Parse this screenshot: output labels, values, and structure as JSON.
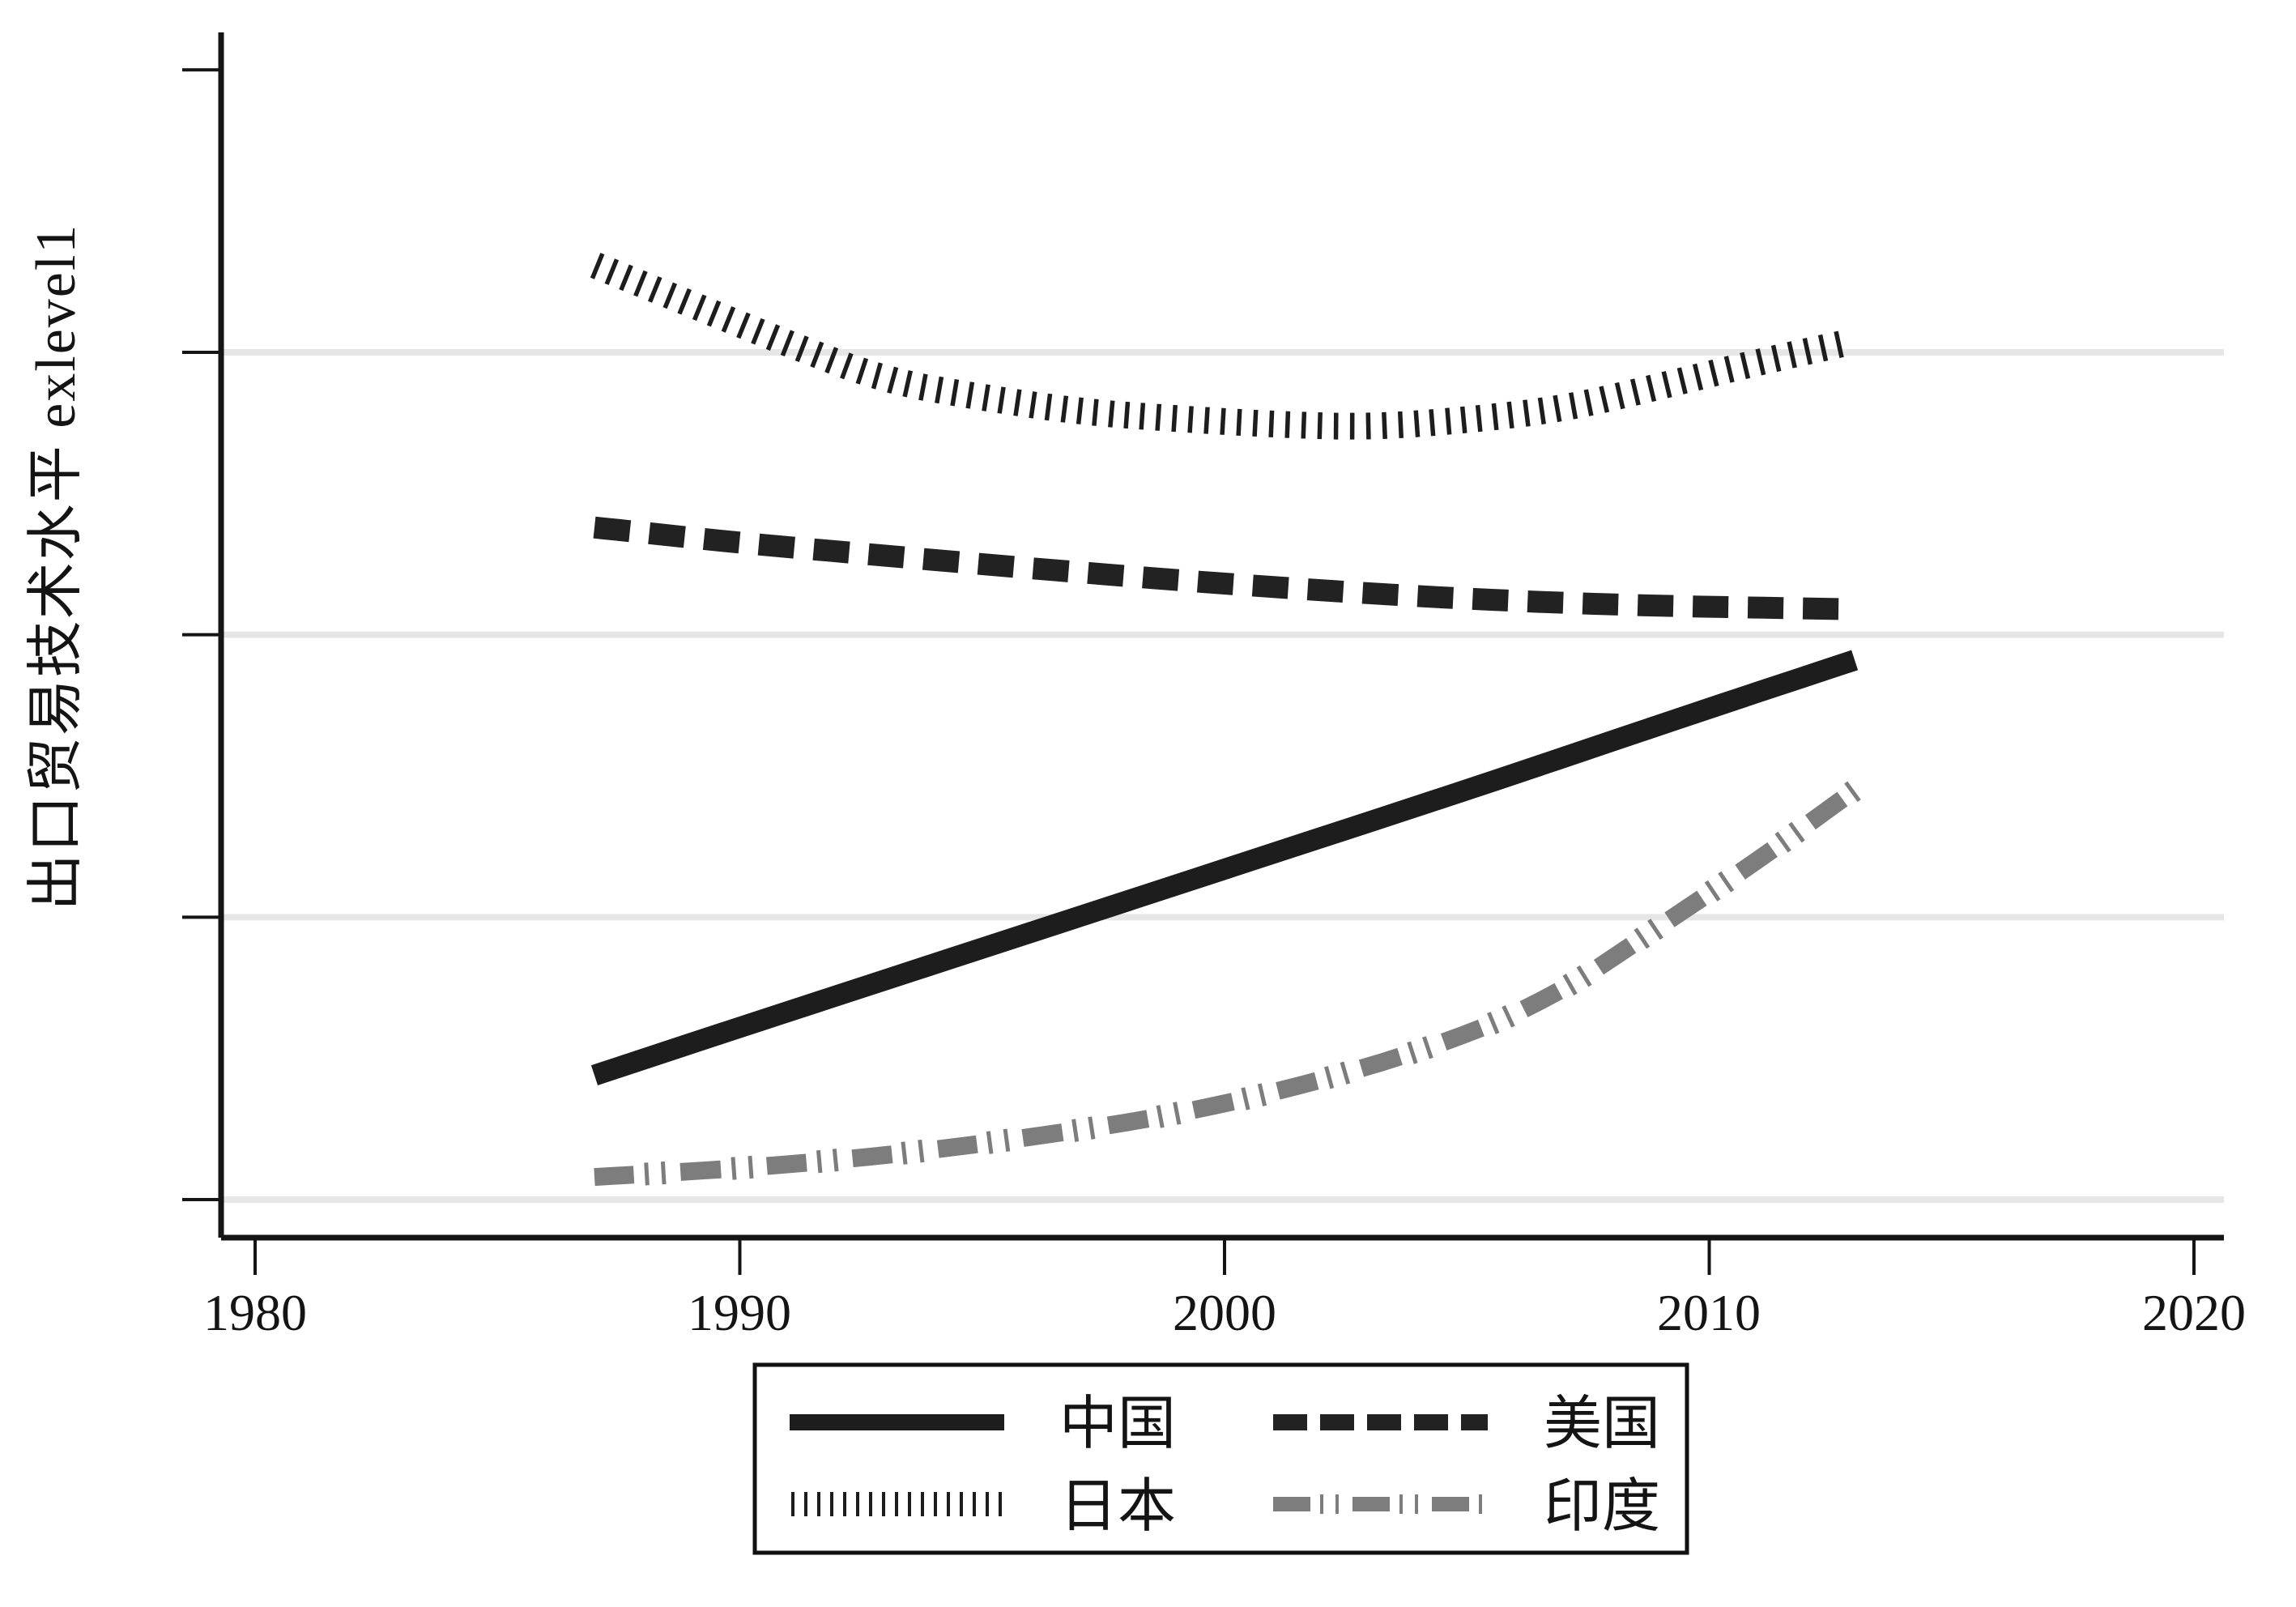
{
  "page": {
    "background": "#ffffff"
  },
  "chart": {
    "y_axis_label": "出口贸易技术水平 exlevel1",
    "x_tick_labels": [
      "1980",
      "1990",
      "2000",
      "2010",
      "2020"
    ],
    "colors": {
      "axis": "#141414",
      "gridline": "#e6e6e6",
      "black_series": "#1d1d1d",
      "gray_series": "#7d7d7d",
      "legend_border": "#111111"
    }
  },
  "legend": {
    "items": [
      {
        "id": "china",
        "label": "中国",
        "style": "solid",
        "color": "#1d1d1d"
      },
      {
        "id": "usa",
        "label": "美国",
        "style": "dashed",
        "color": "#222222"
      },
      {
        "id": "japan",
        "label": "日本",
        "style": "ticks",
        "color": "#1d1d1d"
      },
      {
        "id": "india",
        "label": "印度",
        "style": "dash-dot-dot",
        "color": "#7d7d7d"
      }
    ]
  },
  "chart_data": {
    "type": "line",
    "title": "",
    "xlabel": "",
    "ylabel": "出口贸易技术水平 exlevel1",
    "x_ticks": [
      1980,
      1990,
      2000,
      2010,
      2020
    ],
    "xlim": [
      1979.3,
      2021.3
    ],
    "ylim": [
      0.87,
      5.16
    ],
    "grid": "horizontal",
    "legend_position": "bottom-center-boxed",
    "y_axis_numeric_labels_visible": false,
    "y_unit_note": "y axis has tick marks but no numeric labels; values given in gridline units (bottom gridline = 1, each gridline step = +1, top tick = 5)",
    "y_gridline_values": [
      1,
      2,
      3,
      4
    ],
    "y_tick_values": [
      1,
      2,
      3,
      4,
      5
    ],
    "series": [
      {
        "id": "china",
        "name": "中国",
        "style": "solid",
        "color": "#1d1d1d",
        "points": [
          [
            1987,
            1.44
          ],
          [
            1990,
            1.61
          ],
          [
            1995,
            1.89
          ],
          [
            2000,
            2.17
          ],
          [
            2005,
            2.45
          ],
          [
            2010,
            2.74
          ],
          [
            2013,
            2.91
          ]
        ]
      },
      {
        "id": "usa",
        "name": "美国",
        "style": "dashed",
        "color": "#222222",
        "points": [
          [
            1987,
            3.38
          ],
          [
            1990,
            3.325
          ],
          [
            1993,
            3.28
          ],
          [
            1996,
            3.235
          ],
          [
            2000,
            3.18
          ],
          [
            2004,
            3.135
          ],
          [
            2008,
            3.105
          ],
          [
            2013,
            3.09
          ]
        ]
      },
      {
        "id": "japan",
        "name": "日本",
        "style": "ticks",
        "color": "#1d1d1d",
        "points": [
          [
            1987,
            4.31
          ],
          [
            1989,
            4.17
          ],
          [
            1991,
            4.03
          ],
          [
            1993,
            3.9
          ],
          [
            1995,
            3.84
          ],
          [
            1997,
            3.79
          ],
          [
            1999,
            3.765
          ],
          [
            2001,
            3.745
          ],
          [
            2003,
            3.735
          ],
          [
            2005,
            3.76
          ],
          [
            2007,
            3.8
          ],
          [
            2009,
            3.88
          ],
          [
            2011,
            3.965
          ],
          [
            2013,
            4.04
          ]
        ]
      },
      {
        "id": "india",
        "name": "印度",
        "style": "dash-dot-dot",
        "color": "#7d7d7d",
        "points": [
          [
            1987,
            1.08
          ],
          [
            1990,
            1.11
          ],
          [
            1993,
            1.155
          ],
          [
            1996,
            1.22
          ],
          [
            1999,
            1.3
          ],
          [
            2002,
            1.42
          ],
          [
            2005,
            1.58
          ],
          [
            2007,
            1.74
          ],
          [
            2009,
            1.97
          ],
          [
            2011,
            2.2
          ],
          [
            2013,
            2.45
          ]
        ]
      }
    ]
  }
}
